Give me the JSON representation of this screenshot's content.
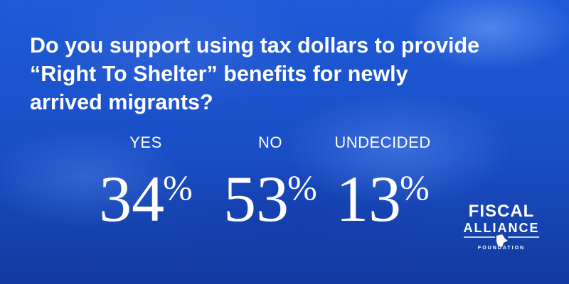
{
  "question": {
    "lines": [
      "Do you support using tax dollars to provide",
      "“Right To Shelter” benefits for newly",
      "arrived migrants?"
    ]
  },
  "results": [
    {
      "label": "YES",
      "number": "34",
      "unit": "%"
    },
    {
      "label": "NO",
      "number": "53",
      "unit": "%"
    },
    {
      "label": "UNDECIDED",
      "number": "13",
      "unit": "%"
    }
  ],
  "logo": {
    "line1": "FISCAL",
    "line2": "ALLIANCE",
    "line3": "FOUNDATION"
  }
}
